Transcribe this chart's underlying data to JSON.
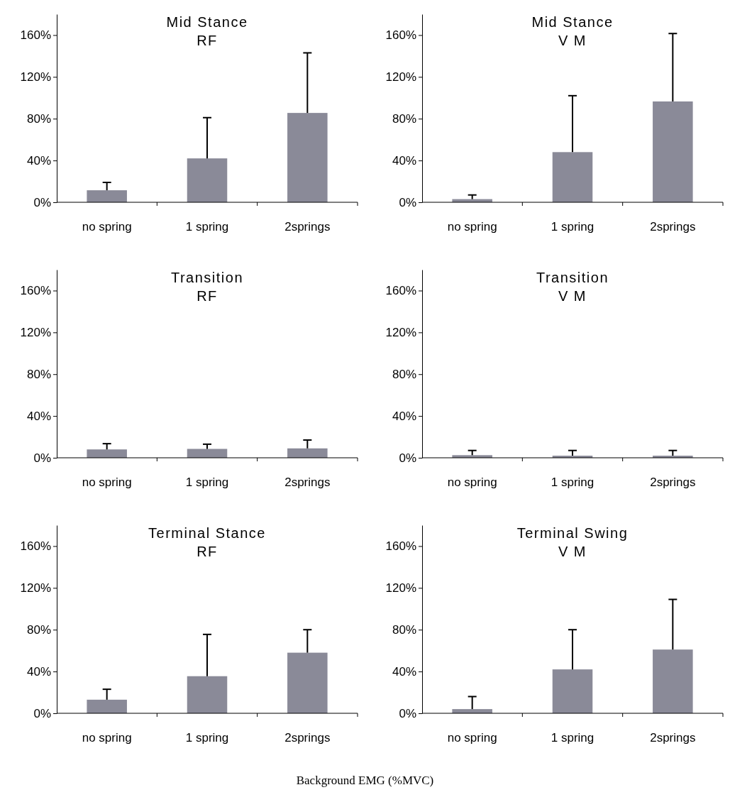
{
  "chart_data": [
    {
      "type": "bar",
      "title": "Mid Stance",
      "subtitle": "RF",
      "categories": [
        "no spring",
        "1 spring",
        "2springs"
      ],
      "values": [
        11.5,
        42,
        85.5
      ],
      "errors": [
        [
          11.5,
          19
        ],
        [
          42,
          81
        ],
        [
          85.5,
          143
        ]
      ],
      "color": "#8a8a98",
      "ylim": [
        0,
        180
      ],
      "yticks": [
        {
          "value": 0,
          "label": "0%"
        },
        {
          "value": 40,
          "label": "40%"
        },
        {
          "value": 80,
          "label": "80%"
        },
        {
          "value": 120,
          "label": "120%"
        },
        {
          "value": 160,
          "label": "160%"
        }
      ]
    },
    {
      "type": "bar",
      "title": "Mid Stance",
      "subtitle": "V M",
      "categories": [
        "no spring",
        "1 spring",
        "2springs"
      ],
      "values": [
        3,
        48,
        96.5
      ],
      "errors": [
        [
          3,
          7
        ],
        [
          48,
          102
        ],
        [
          96.5,
          161.5
        ]
      ],
      "color": "#8a8a98",
      "ylim": [
        0,
        180
      ],
      "yticks": [
        {
          "value": 0,
          "label": "0%"
        },
        {
          "value": 40,
          "label": "40%"
        },
        {
          "value": 80,
          "label": "80%"
        },
        {
          "value": 120,
          "label": "120%"
        },
        {
          "value": 160,
          "label": "160%"
        }
      ]
    },
    {
      "type": "bar",
      "title": "Transition",
      "subtitle": "RF",
      "categories": [
        "no spring",
        "1 spring",
        "2springs"
      ],
      "values": [
        8,
        8.5,
        9
      ],
      "errors": [
        [
          8,
          13.5
        ],
        [
          8.5,
          13
        ],
        [
          9,
          17
        ]
      ],
      "color": "#8a8a98",
      "ylim": [
        0,
        180
      ],
      "yticks": [
        {
          "value": 0,
          "label": "0%"
        },
        {
          "value": 40,
          "label": "40%"
        },
        {
          "value": 80,
          "label": "80%"
        },
        {
          "value": 120,
          "label": "120%"
        },
        {
          "value": 160,
          "label": "160%"
        }
      ]
    },
    {
      "type": "bar",
      "title": "Transition",
      "subtitle": "V M",
      "categories": [
        "no spring",
        "1 spring",
        "2springs"
      ],
      "values": [
        2.5,
        2,
        2
      ],
      "errors": [
        [
          2.5,
          7
        ],
        [
          2,
          7
        ],
        [
          2,
          7
        ]
      ],
      "color": "#8a8a98",
      "ylim": [
        0,
        180
      ],
      "yticks": [
        {
          "value": 0,
          "label": "0%"
        },
        {
          "value": 40,
          "label": "40%"
        },
        {
          "value": 80,
          "label": "80%"
        },
        {
          "value": 120,
          "label": "120%"
        },
        {
          "value": 160,
          "label": "160%"
        }
      ]
    },
    {
      "type": "bar",
      "title": "Terminal Stance",
      "subtitle": "RF",
      "categories": [
        "no spring",
        "1 spring",
        "2springs"
      ],
      "values": [
        13,
        35.5,
        58
      ],
      "errors": [
        [
          13,
          23
        ],
        [
          35.5,
          75.5
        ],
        [
          58,
          80
        ]
      ],
      "color": "#8a8a98",
      "ylim": [
        0,
        180
      ],
      "yticks": [
        {
          "value": 0,
          "label": "0%"
        },
        {
          "value": 40,
          "label": "40%"
        },
        {
          "value": 80,
          "label": "80%"
        },
        {
          "value": 120,
          "label": "120%"
        },
        {
          "value": 160,
          "label": "160%"
        }
      ],
      "annotations": [
        "Background EMG (%MVC)"
      ]
    },
    {
      "type": "bar",
      "title": "Terminal Swing",
      "subtitle": "V M",
      "categories": [
        "no spring",
        "1 spring",
        "2springs"
      ],
      "values": [
        4,
        42,
        61
      ],
      "errors": [
        [
          4,
          16
        ],
        [
          42,
          80
        ],
        [
          61,
          109
        ]
      ],
      "color": "#8a8a98",
      "ylim": [
        0,
        180
      ],
      "yticks": [
        {
          "value": 0,
          "label": "0%"
        },
        {
          "value": 40,
          "label": "40%"
        },
        {
          "value": 80,
          "label": "80%"
        },
        {
          "value": 120,
          "label": "120%"
        },
        {
          "value": 160,
          "label": "160%"
        }
      ]
    }
  ]
}
